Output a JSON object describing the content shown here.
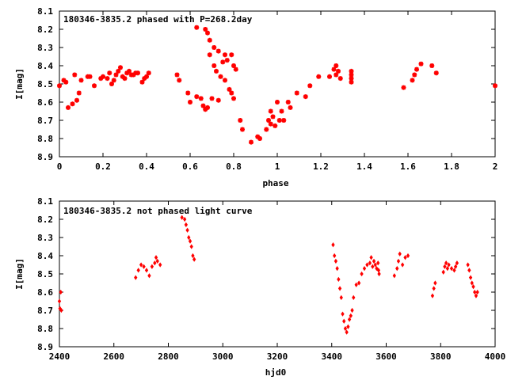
{
  "colors": {
    "points": "#ff0000",
    "frame": "#000000",
    "background": "#ffffff"
  },
  "chart_data": [
    {
      "type": "scatter",
      "title": "180346-3835.2 phased with P=268.2day",
      "xlabel": "phase",
      "ylabel": "I[mag]",
      "xlim": [
        0,
        2
      ],
      "ylim": [
        8.9,
        8.1
      ],
      "inverted_y": true,
      "grid": false,
      "xticks": [
        "0",
        "0.2",
        "0.4",
        "0.6",
        "0.8",
        "1",
        "1.2",
        "1.4",
        "1.6",
        "1.8",
        "2"
      ],
      "yticks": [
        "8.1",
        "8.2",
        "8.3",
        "8.4",
        "8.5",
        "8.6",
        "8.7",
        "8.8",
        "8.9"
      ],
      "marker": "cross",
      "points": [
        [
          0.0,
          8.51
        ],
        [
          0.02,
          8.48
        ],
        [
          0.03,
          8.49
        ],
        [
          0.04,
          8.63
        ],
        [
          0.06,
          8.61
        ],
        [
          0.07,
          8.45
        ],
        [
          0.08,
          8.59
        ],
        [
          0.09,
          8.55
        ],
        [
          0.1,
          8.48
        ],
        [
          0.13,
          8.46
        ],
        [
          0.14,
          8.46
        ],
        [
          0.16,
          8.51
        ],
        [
          0.19,
          8.47
        ],
        [
          0.2,
          8.46
        ],
        [
          0.22,
          8.47
        ],
        [
          0.23,
          8.44
        ],
        [
          0.24,
          8.5
        ],
        [
          0.25,
          8.48
        ],
        [
          0.26,
          8.45
        ],
        [
          0.27,
          8.43
        ],
        [
          0.28,
          8.41
        ],
        [
          0.29,
          8.46
        ],
        [
          0.3,
          8.47
        ],
        [
          0.31,
          8.44
        ],
        [
          0.32,
          8.43
        ],
        [
          0.33,
          8.45
        ],
        [
          0.34,
          8.45
        ],
        [
          0.35,
          8.44
        ],
        [
          0.36,
          8.44
        ],
        [
          0.38,
          8.49
        ],
        [
          0.39,
          8.47
        ],
        [
          0.4,
          8.46
        ],
        [
          0.41,
          8.44
        ],
        [
          0.54,
          8.45
        ],
        [
          0.55,
          8.48
        ],
        [
          0.59,
          8.55
        ],
        [
          0.6,
          8.6
        ],
        [
          0.63,
          8.57
        ],
        [
          0.63,
          8.19
        ],
        [
          0.65,
          8.58
        ],
        [
          0.66,
          8.62
        ],
        [
          0.67,
          8.2
        ],
        [
          0.67,
          8.64
        ],
        [
          0.68,
          8.22
        ],
        [
          0.68,
          8.63
        ],
        [
          0.69,
          8.26
        ],
        [
          0.69,
          8.34
        ],
        [
          0.7,
          8.58
        ],
        [
          0.71,
          8.3
        ],
        [
          0.71,
          8.4
        ],
        [
          0.72,
          8.43
        ],
        [
          0.73,
          8.59
        ],
        [
          0.73,
          8.32
        ],
        [
          0.74,
          8.46
        ],
        [
          0.75,
          8.38
        ],
        [
          0.76,
          8.48
        ],
        [
          0.76,
          8.34
        ],
        [
          0.77,
          8.37
        ],
        [
          0.78,
          8.53
        ],
        [
          0.79,
          8.55
        ],
        [
          0.79,
          8.34
        ],
        [
          0.8,
          8.4
        ],
        [
          0.8,
          8.58
        ],
        [
          0.81,
          8.42
        ],
        [
          0.83,
          8.7
        ],
        [
          0.84,
          8.75
        ],
        [
          0.88,
          8.82
        ],
        [
          0.91,
          8.79
        ],
        [
          0.92,
          8.8
        ],
        [
          0.95,
          8.75
        ],
        [
          0.96,
          8.7
        ],
        [
          0.97,
          8.72
        ],
        [
          0.97,
          8.65
        ],
        [
          0.98,
          8.68
        ],
        [
          0.99,
          8.73
        ],
        [
          1.0,
          8.6
        ],
        [
          1.01,
          8.7
        ],
        [
          1.02,
          8.65
        ],
        [
          1.03,
          8.7
        ],
        [
          1.05,
          8.6
        ],
        [
          1.06,
          8.63
        ],
        [
          1.09,
          8.55
        ],
        [
          1.13,
          8.57
        ],
        [
          1.15,
          8.51
        ],
        [
          1.19,
          8.46
        ],
        [
          1.24,
          8.46
        ],
        [
          1.26,
          8.42
        ],
        [
          1.27,
          8.4
        ],
        [
          1.27,
          8.45
        ],
        [
          1.28,
          8.43
        ],
        [
          1.29,
          8.47
        ],
        [
          1.34,
          8.43
        ],
        [
          1.34,
          8.45
        ],
        [
          1.34,
          8.47
        ],
        [
          1.34,
          8.49
        ],
        [
          1.58,
          8.52
        ],
        [
          1.62,
          8.48
        ],
        [
          1.63,
          8.45
        ],
        [
          1.64,
          8.42
        ],
        [
          1.66,
          8.39
        ],
        [
          1.71,
          8.4
        ],
        [
          1.73,
          8.44
        ],
        [
          2.0,
          8.51
        ]
      ]
    },
    {
      "type": "scatter",
      "title": "180346-3835.2 not phased light curve",
      "xlabel": "hjd0",
      "ylabel": "I[mag]",
      "xlim": [
        2400,
        4000
      ],
      "ylim": [
        8.9,
        8.1
      ],
      "inverted_y": true,
      "grid": false,
      "xticks": [
        "2400",
        "2600",
        "2800",
        "3000",
        "3200",
        "3400",
        "3600",
        "3800",
        "4000"
      ],
      "yticks": [
        "8.1",
        "8.2",
        "8.3",
        "8.4",
        "8.5",
        "8.6",
        "8.7",
        "8.8",
        "8.9"
      ],
      "marker": "diamond",
      "points": [
        [
          2400,
          8.65
        ],
        [
          2402,
          8.69
        ],
        [
          2405,
          8.6
        ],
        [
          2407,
          8.7
        ],
        [
          2680,
          8.52
        ],
        [
          2690,
          8.48
        ],
        [
          2700,
          8.45
        ],
        [
          2710,
          8.46
        ],
        [
          2720,
          8.48
        ],
        [
          2730,
          8.51
        ],
        [
          2740,
          8.46
        ],
        [
          2750,
          8.44
        ],
        [
          2755,
          8.41
        ],
        [
          2760,
          8.43
        ],
        [
          2770,
          8.45
        ],
        [
          2850,
          8.19
        ],
        [
          2860,
          8.2
        ],
        [
          2865,
          8.23
        ],
        [
          2870,
          8.26
        ],
        [
          2875,
          8.3
        ],
        [
          2880,
          8.32
        ],
        [
          2885,
          8.35
        ],
        [
          2890,
          8.4
        ],
        [
          2895,
          8.42
        ],
        [
          3405,
          8.34
        ],
        [
          3410,
          8.4
        ],
        [
          3415,
          8.43
        ],
        [
          3420,
          8.47
        ],
        [
          3425,
          8.53
        ],
        [
          3430,
          8.58
        ],
        [
          3435,
          8.63
        ],
        [
          3440,
          8.72
        ],
        [
          3445,
          8.76
        ],
        [
          3450,
          8.8
        ],
        [
          3455,
          8.82
        ],
        [
          3460,
          8.79
        ],
        [
          3465,
          8.75
        ],
        [
          3470,
          8.73
        ],
        [
          3475,
          8.7
        ],
        [
          3480,
          8.63
        ],
        [
          3490,
          8.56
        ],
        [
          3500,
          8.55
        ],
        [
          3510,
          8.5
        ],
        [
          3520,
          8.47
        ],
        [
          3530,
          8.45
        ],
        [
          3540,
          8.44
        ],
        [
          3545,
          8.41
        ],
        [
          3550,
          8.46
        ],
        [
          3555,
          8.43
        ],
        [
          3560,
          8.45
        ],
        [
          3565,
          8.47
        ],
        [
          3570,
          8.44
        ],
        [
          3572,
          8.48
        ],
        [
          3574,
          8.5
        ],
        [
          3630,
          8.51
        ],
        [
          3640,
          8.47
        ],
        [
          3645,
          8.43
        ],
        [
          3650,
          8.39
        ],
        [
          3660,
          8.45
        ],
        [
          3670,
          8.41
        ],
        [
          3680,
          8.4
        ],
        [
          3770,
          8.62
        ],
        [
          3775,
          8.58
        ],
        [
          3780,
          8.55
        ],
        [
          3810,
          8.49
        ],
        [
          3815,
          8.46
        ],
        [
          3820,
          8.44
        ],
        [
          3825,
          8.47
        ],
        [
          3830,
          8.45
        ],
        [
          3840,
          8.47
        ],
        [
          3850,
          8.48
        ],
        [
          3855,
          8.46
        ],
        [
          3860,
          8.44
        ],
        [
          3900,
          8.45
        ],
        [
          3905,
          8.48
        ],
        [
          3910,
          8.52
        ],
        [
          3915,
          8.55
        ],
        [
          3920,
          8.57
        ],
        [
          3925,
          8.6
        ],
        [
          3930,
          8.62
        ],
        [
          3935,
          8.6
        ]
      ]
    }
  ]
}
